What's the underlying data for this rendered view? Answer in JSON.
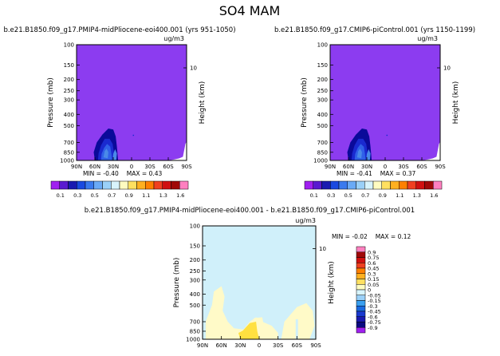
{
  "page": {
    "title": "SO4 MAM"
  },
  "colors": {
    "panel_fill": "#8c3cf0",
    "white": "#ffffff",
    "dark_navy": "#0a0a9a",
    "navy": "#1a2ad0",
    "blue": "#3060e8",
    "mid_blue": "#4a8ae8",
    "light_blue": "#6aaaf0",
    "pale_cyan": "#d0f0fa",
    "pale_yellow": "#fffac8",
    "yellow": "#ffe040"
  },
  "chart_data": [
    {
      "type": "heatmap",
      "title": "b.e21.B1850.f09_g17.PMIP4-midPliocene-eoi400.001  (yrs 951-1050)",
      "units": "ug/m3",
      "ylabel": "Pressure (mb)",
      "ylabel_right": "Height (km)",
      "y_scale": "log",
      "ylim": [
        1000,
        100
      ],
      "yticks": [
        "100",
        "150",
        "200",
        "250",
        "300",
        "400",
        "500",
        "700",
        "850",
        "1000"
      ],
      "right_ticks": [
        "10"
      ],
      "x_ticks": [
        "90N",
        "60N",
        "30N",
        "0",
        "30S",
        "60S",
        "90S"
      ],
      "min_label": "MIN =",
      "min_value": "-0.40",
      "max_label": "MAX =",
      "max_value": "0.43",
      "max_label_sep": "  ",
      "features": [
        {
          "lat_start": 60,
          "lat_end": 25,
          "p_top": 520,
          "level": 0.1
        },
        {
          "lat_start": 55,
          "lat_end": 35,
          "p_top": 650,
          "level": 0.3
        },
        {
          "lat_start": 45,
          "lat_end": 40,
          "p_top": 800,
          "level": 0.5
        }
      ],
      "colorbar": {
        "labels": [
          "0.1",
          "0.3",
          "0.5",
          "0.7",
          "0.9",
          "1.1",
          "1.3",
          "1.6"
        ],
        "colors": [
          "#a020f0",
          "#5a1ad0",
          "#1a1ab0",
          "#1a4ae0",
          "#3a7aee",
          "#6aaaf6",
          "#9ad0f8",
          "#d8f4fc",
          "#fffcc0",
          "#ffe060",
          "#ffb020",
          "#ff8000",
          "#f04020",
          "#d01010",
          "#a00808",
          "#ff80c0"
        ]
      }
    },
    {
      "type": "heatmap",
      "title": "b.e21.B1850.f09_g17.CMIP6-piControl.001  (yrs 1150-1199)",
      "units": "ug/m3",
      "ylabel": "Pressure (mb)",
      "ylabel_right": "Height (km)",
      "y_scale": "log",
      "ylim": [
        1000,
        100
      ],
      "yticks": [
        "100",
        "150",
        "200",
        "250",
        "300",
        "400",
        "500",
        "700",
        "850",
        "1000"
      ],
      "right_ticks": [
        "10"
      ],
      "x_ticks": [
        "90N",
        "60N",
        "30N",
        "0",
        "30S",
        "60S",
        "90S"
      ],
      "min_label": "MIN =",
      "min_value": "-0.41",
      "max_label": "MAX =",
      "max_value": "0.37",
      "max_label_sep": "  "
    },
    {
      "type": "heatmap",
      "title": "b.e21.B1850.f09_g17.PMIP4-midPliocene-eoi400.001 - b.e21.B1850.f09_g17.CMIP6-piControl.001",
      "units": "ug/m3",
      "ylabel": "Pressure (mb)",
      "ylabel_right": "Height (km)",
      "y_scale": "log",
      "ylim": [
        1000,
        100
      ],
      "yticks": [
        "100",
        "150",
        "200",
        "250",
        "300",
        "400",
        "500",
        "700",
        "850",
        "1000"
      ],
      "right_ticks": [
        "10"
      ],
      "x_ticks": [
        "90N",
        "60N",
        "30N",
        "0",
        "30S",
        "60S",
        "90S"
      ],
      "min_label": "MIN =",
      "min_value": "-0.02",
      "max_label": "MAX =",
      "max_value": "0.12",
      "colorbar": {
        "labels": [
          "0.9",
          "0.75",
          "0.6",
          "0.45",
          "0.3",
          "0.15",
          "0.05",
          "0",
          "-0.05",
          "-0.15",
          "-0.3",
          "-0.45",
          "-0.6",
          "-0.75",
          "-0.9"
        ],
        "colors": [
          "#ff80c0",
          "#a00808",
          "#d01010",
          "#f04020",
          "#ff8000",
          "#ffb020",
          "#ffe060",
          "#fffcc0",
          "#d8f4fc",
          "#9ad0f8",
          "#3aa0f0",
          "#1a6ae0",
          "#1a3ad0",
          "#1a1ab0",
          "#0a0a80",
          "#a020f0"
        ]
      }
    }
  ]
}
